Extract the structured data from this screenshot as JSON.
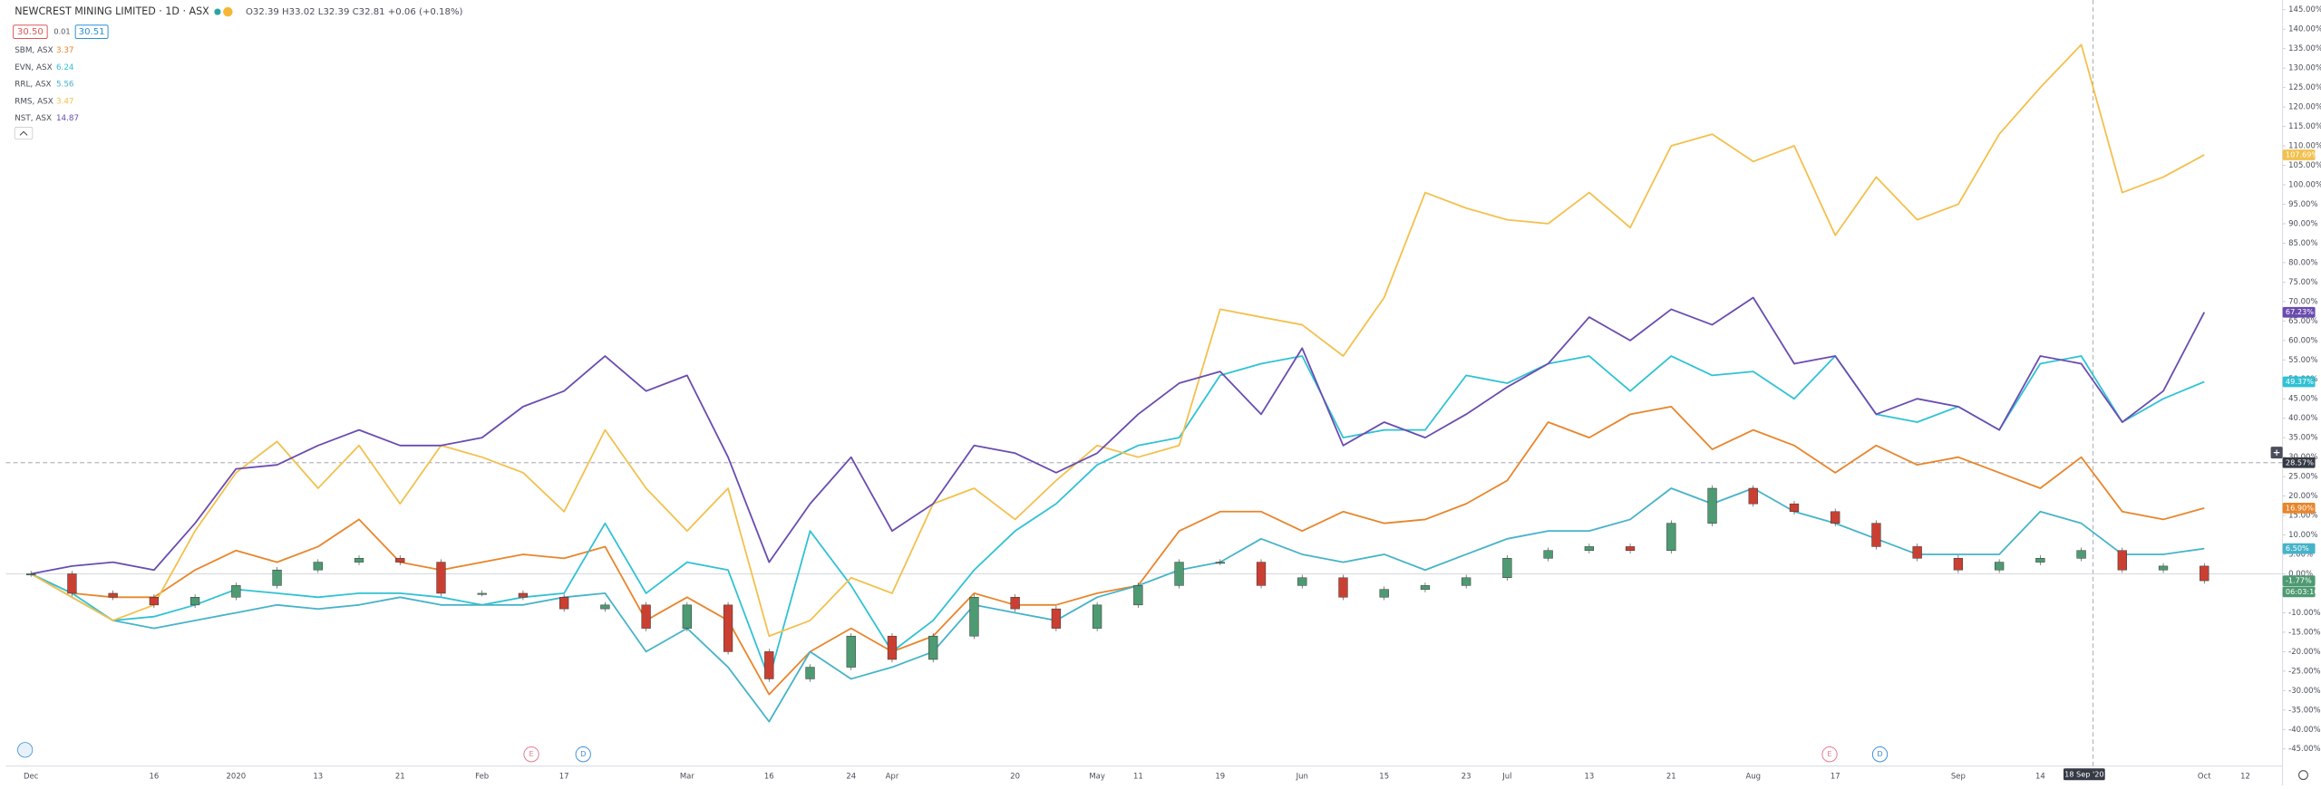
{
  "header": {
    "title": "NEWCREST MINING LIMITED · 1D · ASX",
    "ohlc": "O32.39 H33.02 L32.39 C32.81 +0.06 (+0.18%)",
    "bid": "30.50",
    "spread": "0.01",
    "ask": "30.51",
    "countdown": "06:03:10"
  },
  "events": [
    "E",
    "D",
    "E",
    "D"
  ],
  "chart_data": {
    "type": "line",
    "categories": [
      "Dec",
      null,
      null,
      "16",
      null,
      "2020",
      null,
      "13",
      null,
      "21",
      null,
      "Feb",
      null,
      "17",
      null,
      null,
      "Mar",
      null,
      "16",
      null,
      "24",
      "Apr",
      null,
      null,
      "20",
      null,
      "May",
      "11",
      null,
      "19",
      null,
      "Jun",
      null,
      "15",
      null,
      "23",
      "Jul",
      null,
      "13",
      null,
      "21",
      null,
      "Aug",
      null,
      "17",
      null,
      null,
      "Sep",
      null,
      "14",
      null,
      null,
      null,
      "Oct",
      "12"
    ],
    "ylim": [
      -50,
      147.5
    ],
    "yticks": [
      {
        "value": -45,
        "label": "-45.00%"
      },
      {
        "value": -40,
        "label": "-40.00%"
      },
      {
        "value": -35,
        "label": "-35.00%"
      },
      {
        "value": -30,
        "label": "-30.00%"
      },
      {
        "value": -25,
        "label": "-25.00%"
      },
      {
        "value": -20,
        "label": "-20.00%"
      },
      {
        "value": -15,
        "label": "-15.00%"
      },
      {
        "value": -10,
        "label": "-10.00%"
      },
      {
        "value": -5,
        "label": "-5.00%"
      },
      {
        "value": 0,
        "label": "0.00%"
      },
      {
        "value": 5,
        "label": "5.00%"
      },
      {
        "value": 10,
        "label": "10.00%"
      },
      {
        "value": 15,
        "label": "15.00%"
      },
      {
        "value": 20,
        "label": "20.00%"
      },
      {
        "value": 25,
        "label": "25.00%"
      },
      {
        "value": 30,
        "label": "30.00%"
      },
      {
        "value": 35,
        "label": "35.00%"
      },
      {
        "value": 40,
        "label": "40.00%"
      },
      {
        "value": 45,
        "label": "45.00%"
      },
      {
        "value": 50,
        "label": "50.00%"
      },
      {
        "value": 55,
        "label": "55.00%"
      },
      {
        "value": 60,
        "label": "60.00%"
      },
      {
        "value": 65,
        "label": "65.00%"
      },
      {
        "value": 70,
        "label": "70.00%"
      },
      {
        "value": 75,
        "label": "75.00%"
      },
      {
        "value": 80,
        "label": "80.00%"
      },
      {
        "value": 85,
        "label": "85.00%"
      },
      {
        "value": 90,
        "label": "90.00%"
      },
      {
        "value": 95,
        "label": "95.00%"
      },
      {
        "value": 100,
        "label": "100.00%"
      },
      {
        "value": 105,
        "label": "105.00%"
      },
      {
        "value": 110,
        "label": "110.00%"
      },
      {
        "value": 115,
        "label": "115.00%"
      },
      {
        "value": 120,
        "label": "120.00%"
      },
      {
        "value": 125,
        "label": "125.00%"
      },
      {
        "value": 130,
        "label": "130.00%"
      },
      {
        "value": 135,
        "label": "135.00%"
      },
      {
        "value": 140,
        "label": "140.00%"
      },
      {
        "value": 145,
        "label": "145.00%"
      }
    ],
    "grid": false,
    "crosshair": {
      "value": 28.57,
      "label": "28.57%",
      "x_label": "18 Sep '20"
    },
    "series": [
      {
        "name": "SBM, ASX",
        "price": 3.37,
        "color": "#e8852b",
        "last_label": "16.90%",
        "values": [
          0,
          -5,
          -6,
          -6,
          1,
          6,
          3,
          7,
          14,
          3,
          1,
          3,
          5,
          4,
          7,
          -12,
          -6,
          -12,
          -31,
          -20,
          -14,
          -20,
          -16,
          -5,
          -8,
          -8,
          -5,
          -3,
          11,
          16,
          16,
          11,
          16,
          13,
          14,
          18,
          24,
          39,
          35,
          41,
          43,
          32,
          37,
          33,
          26,
          33,
          28,
          30,
          26,
          22,
          30,
          16,
          14,
          16.9,
          null
        ]
      },
      {
        "name": "EVN, ASX",
        "price": 6.24,
        "color": "#2fc2d4",
        "last_label": "49.37%",
        "values": [
          0,
          -5,
          -12,
          -11,
          -8,
          -4,
          -5,
          -6,
          -5,
          -5,
          -6,
          -8,
          -6,
          -5,
          13,
          -5,
          3,
          1,
          -27,
          11,
          -3,
          -20,
          -12,
          1,
          11,
          18,
          28,
          33,
          35,
          51,
          54,
          56,
          35,
          37,
          37,
          51,
          49,
          54,
          56,
          47,
          56,
          51,
          52,
          45,
          56,
          41,
          39,
          43,
          37,
          54,
          56,
          39,
          45,
          49.37,
          null
        ]
      },
      {
        "name": "RRL, ASX",
        "price": 5.56,
        "color": "#46b3c9",
        "last_label": "6.50%",
        "values": [
          0,
          -6,
          -12,
          -14,
          -12,
          -10,
          -8,
          -9,
          -8,
          -6,
          -8,
          -8,
          -8,
          -6,
          -5,
          -20,
          -14,
          -24,
          -38,
          -20,
          -27,
          -24,
          -20,
          -8,
          -10,
          -12,
          -6,
          -3,
          1,
          3,
          9,
          5,
          3,
          5,
          1,
          5,
          9,
          11,
          11,
          14,
          22,
          18,
          22,
          16,
          13,
          9,
          5,
          5,
          5,
          16,
          13,
          5,
          5,
          6.5,
          null
        ]
      },
      {
        "name": "RMS, ASX",
        "price": 3.47,
        "color": "#f3c04d",
        "last_label": "107.69%",
        "values": [
          0,
          -6,
          -12,
          -8,
          11,
          26,
          34,
          22,
          33,
          18,
          33,
          30,
          26,
          16,
          37,
          22,
          11,
          22,
          -16,
          -12,
          -1,
          -5,
          18,
          22,
          14,
          24,
          33,
          30,
          33,
          68,
          66,
          64,
          56,
          71,
          98,
          94,
          91,
          90,
          98,
          89,
          110,
          113,
          106,
          110,
          87,
          102,
          91,
          95,
          113,
          125,
          136,
          98,
          102,
          107.69,
          null
        ]
      },
      {
        "name": "NST, ASX",
        "price": 14.87,
        "color": "#6a4cb0",
        "last_label": "67.23%",
        "values": [
          0,
          2,
          3,
          1,
          13,
          27,
          28,
          33,
          37,
          33,
          33,
          35,
          43,
          47,
          56,
          47,
          51,
          30,
          3,
          18,
          30,
          11,
          18,
          33,
          31,
          26,
          31,
          41,
          49,
          52,
          41,
          58,
          33,
          39,
          35,
          41,
          48,
          54,
          66,
          60,
          68,
          64,
          71,
          54,
          56,
          41,
          45,
          43,
          37,
          56,
          54,
          39,
          47,
          67.23,
          null
        ]
      },
      {
        "type": "candlestick",
        "color": "#4e9a72",
        "down_color": "#c94032",
        "last_label": "-1.77%",
        "values": [
          0,
          -5,
          -6,
          -8,
          -6,
          -3,
          1,
          3,
          4,
          3,
          -5,
          -5,
          -6,
          -9,
          -8,
          -14,
          -8,
          -20,
          -27,
          -24,
          -16,
          -22,
          -16,
          -6,
          -9,
          -14,
          -8,
          -3,
          3,
          3,
          -3,
          -1,
          -6,
          -4,
          -3,
          -1,
          4,
          6,
          7,
          6,
          13,
          22,
          18,
          16,
          13,
          7,
          4,
          1,
          3,
          4,
          6,
          1,
          2,
          -1.77,
          null
        ]
      }
    ]
  }
}
